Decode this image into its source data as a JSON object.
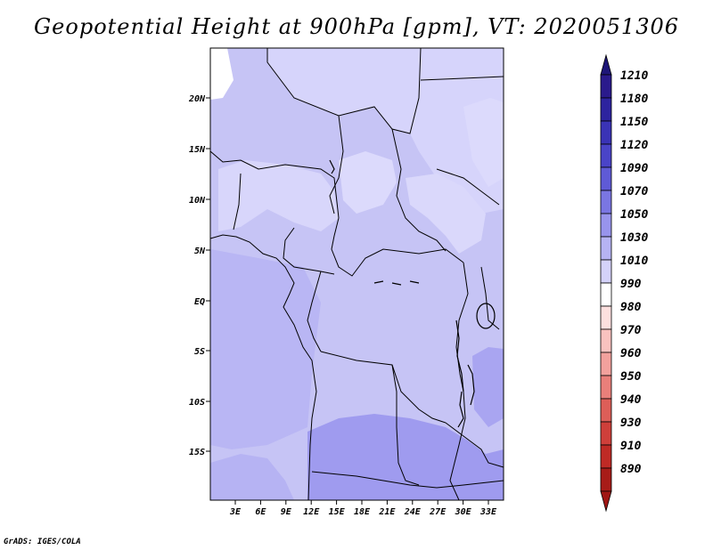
{
  "title": "Geopotential Height at 900hPa [gpm], VT: 2020051306",
  "credit": "GrADS: IGES/COLA",
  "map": {
    "lat_labels": [
      "20N",
      "15N",
      "10N",
      "5N",
      "EQ",
      "5S",
      "10S",
      "15S"
    ],
    "lon_labels": [
      "3E",
      "6E",
      "9E",
      "12E",
      "15E",
      "18E",
      "21E",
      "24E",
      "27E",
      "30E",
      "33E"
    ]
  },
  "colorbar": {
    "levels": [
      "1210",
      "1180",
      "1150",
      "1120",
      "1090",
      "1070",
      "1050",
      "1030",
      "1010",
      "990",
      "980",
      "970",
      "960",
      "950",
      "940",
      "930",
      "910",
      "890"
    ],
    "colors": [
      "#2a1a8c",
      "#2d239f",
      "#3a33b6",
      "#4a44c8",
      "#5f5ad6",
      "#7a76e2",
      "#9894ec",
      "#b6b3f3",
      "#d4d2fa",
      "#ffffff",
      "#fde0df",
      "#f9c2bf",
      "#f2a19d",
      "#e97f7a",
      "#dd5e58",
      "#cf3f3a",
      "#bf2a25",
      "#a81c18"
    ],
    "top_color": "#1e1678",
    "bottom_color": "#a01614"
  }
}
